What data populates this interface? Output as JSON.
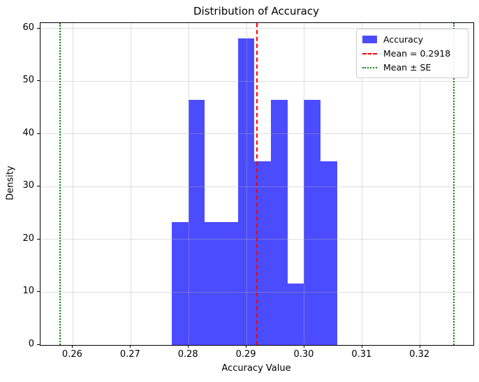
{
  "chart_data": {
    "type": "bar",
    "subtype": "histogram",
    "title": "Distribution of Accuracy",
    "xlabel": "Accuracy Value",
    "ylabel": "Density",
    "xlim": [
      0.2544,
      0.3292
    ],
    "ylim": [
      0,
      61.05
    ],
    "x_ticks": [
      0.26,
      0.27,
      0.28,
      0.29,
      0.3,
      0.31,
      0.32
    ],
    "x_tick_labels": [
      "0.26",
      "0.27",
      "0.28",
      "0.29",
      "0.30",
      "0.31",
      "0.32"
    ],
    "y_ticks": [
      0,
      10,
      20,
      30,
      40,
      50,
      60
    ],
    "y_tick_labels": [
      "0",
      "10",
      "20",
      "30",
      "40",
      "50",
      "60"
    ],
    "grid": true,
    "grid_color": "#b0b0b0",
    "histogram": {
      "name": "Accuracy",
      "bin_start": 0.27706,
      "bin_width": 0.00286,
      "counts": [
        2,
        4,
        2,
        2,
        5,
        3,
        4,
        1,
        4,
        3
      ],
      "densities": [
        23.26,
        46.51,
        23.26,
        23.26,
        58.14,
        34.88,
        46.51,
        11.63,
        46.51,
        34.88
      ],
      "color": "#0000ff",
      "alpha": 0.7
    },
    "vlines": [
      {
        "x": 0.2918,
        "color": "#ff0000",
        "style": "dashed",
        "label": "Mean = 0.2918"
      },
      {
        "x": 0.2578,
        "color": "#008000",
        "style": "dotted",
        "label": "Mean ± SE"
      },
      {
        "x": 0.3258,
        "color": "#008000",
        "style": "dotted",
        "label": "Mean ± SE"
      }
    ],
    "mean": 0.2918,
    "standard_error": 0.034,
    "legend": {
      "position": "upper right",
      "entries": [
        {
          "label": "Accuracy",
          "marker": "patch",
          "color": "#0000ff"
        },
        {
          "label": "Mean = 0.2918",
          "marker": "dashed-line",
          "color": "#ff0000"
        },
        {
          "label": "Mean ± SE",
          "marker": "dotted-line",
          "color": "#008000"
        }
      ]
    }
  }
}
